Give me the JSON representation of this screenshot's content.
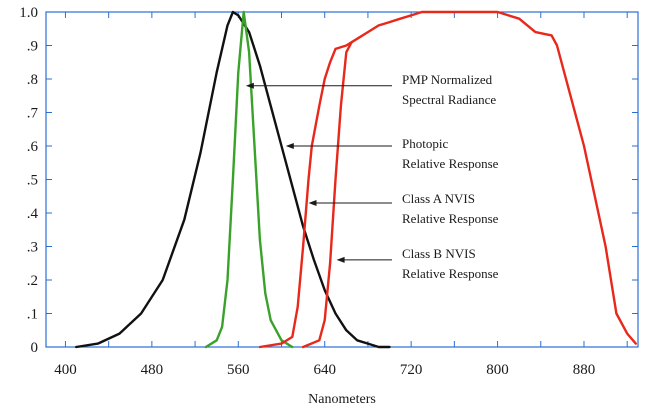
{
  "chart_data": {
    "type": "line",
    "xlabel": "Nanometers",
    "ylabel": "",
    "xlim": [
      382,
      930
    ],
    "ylim": [
      0,
      1.0
    ],
    "x_ticks": [
      400,
      480,
      560,
      640,
      720,
      800,
      880
    ],
    "x_tick_labels": [
      "400",
      "480",
      "560",
      "640",
      "720",
      "800",
      "880"
    ],
    "y_ticks": [
      0,
      0.1,
      0.2,
      0.3,
      0.4,
      0.5,
      0.6,
      0.7,
      0.8,
      0.9,
      1.0
    ],
    "y_tick_labels": [
      "0",
      ".1",
      ".2",
      ".3",
      ".4",
      ".5",
      ".6",
      ".7",
      ".8",
      ".9",
      "1.0"
    ],
    "grid": false,
    "legend": "none",
    "axis_color": "#2a6fd6",
    "series": [
      {
        "key": "photopic",
        "color": "#111111",
        "x": [
          410,
          430,
          450,
          470,
          490,
          510,
          525,
          540,
          550,
          555,
          560,
          570,
          580,
          590,
          600,
          610,
          620,
          630,
          640,
          650,
          660,
          670,
          680,
          690,
          700
        ],
        "y": [
          0.0,
          0.01,
          0.04,
          0.1,
          0.2,
          0.38,
          0.58,
          0.82,
          0.96,
          1.0,
          0.99,
          0.94,
          0.84,
          0.72,
          0.6,
          0.48,
          0.36,
          0.26,
          0.17,
          0.1,
          0.05,
          0.02,
          0.01,
          0.0,
          0.0
        ]
      },
      {
        "key": "pmp",
        "color": "#3aa22a",
        "x": [
          530,
          540,
          545,
          550,
          555,
          560,
          565,
          570,
          575,
          580,
          585,
          590,
          600,
          610
        ],
        "y": [
          0.0,
          0.02,
          0.06,
          0.2,
          0.5,
          0.82,
          1.0,
          0.88,
          0.6,
          0.32,
          0.16,
          0.08,
          0.02,
          0.0
        ]
      },
      {
        "key": "class_a",
        "color": "#e8281b",
        "x": [
          580,
          600,
          610,
          615,
          620,
          625,
          628,
          635,
          640,
          645,
          650,
          660,
          670,
          680,
          690,
          700,
          710,
          720,
          730,
          740,
          760,
          780,
          800,
          820,
          835,
          850,
          855,
          870,
          880,
          890,
          900,
          910,
          920,
          928
        ],
        "y": [
          0.0,
          0.01,
          0.03,
          0.12,
          0.3,
          0.5,
          0.6,
          0.72,
          0.8,
          0.85,
          0.89,
          0.9,
          0.92,
          0.94,
          0.96,
          0.97,
          0.98,
          0.99,
          1.0,
          1.0,
          1.0,
          1.0,
          1.0,
          0.98,
          0.94,
          0.93,
          0.9,
          0.72,
          0.6,
          0.45,
          0.3,
          0.1,
          0.04,
          0.01
        ]
      },
      {
        "key": "class_b",
        "color": "#e8281b",
        "x": [
          620,
          635,
          640,
          645,
          650,
          655,
          660,
          665
        ],
        "y": [
          0.0,
          0.02,
          0.08,
          0.25,
          0.5,
          0.72,
          0.88,
          0.91
        ]
      }
    ],
    "annotations": [
      {
        "lines": [
          "PMP Normalized",
          "Spectral Radiance"
        ],
        "arrow_to": [
          567,
          0.78
        ]
      },
      {
        "lines": [
          "Photopic",
          "Relative Response"
        ],
        "arrow_to": [
          604,
          0.6
        ]
      },
      {
        "lines": [
          "Class A NVIS",
          "Relative Response"
        ],
        "arrow_to": [
          625,
          0.43
        ]
      },
      {
        "lines": [
          "Class B NVIS",
          "Relative Response"
        ],
        "arrow_to": [
          651,
          0.26
        ]
      }
    ]
  }
}
